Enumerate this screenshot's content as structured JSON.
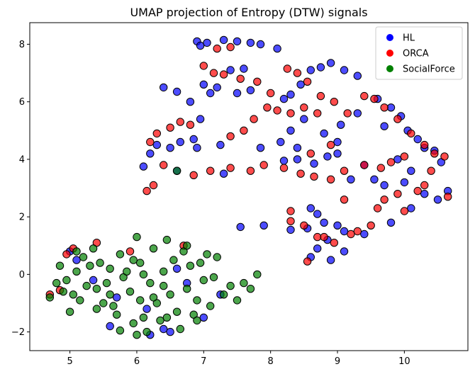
{
  "chart_data": {
    "type": "scatter",
    "title": "UMAP projection of Entropy (DTW) signals",
    "xlabel": "",
    "ylabel": "",
    "xlim": [
      4.4,
      10.95
    ],
    "ylim": [
      -2.65,
      8.75
    ],
    "xticks": [
      5,
      6,
      7,
      8,
      9,
      10
    ],
    "yticks": [
      -2,
      0,
      2,
      4,
      6,
      8
    ],
    "grid": false,
    "legend_position": "top-right",
    "series": [
      {
        "name": "HL",
        "color": "#0000ff",
        "points": [
          [
            6.9,
            8.1
          ],
          [
            6.95,
            7.95
          ],
          [
            7.05,
            8.05
          ],
          [
            7.3,
            8.15
          ],
          [
            7.5,
            8.1
          ],
          [
            7.7,
            8.05
          ],
          [
            7.85,
            8.0
          ],
          [
            8.1,
            7.85
          ],
          [
            7.6,
            7.15
          ],
          [
            7.4,
            7.1
          ],
          [
            6.4,
            6.5
          ],
          [
            6.6,
            6.35
          ],
          [
            7.2,
            6.5
          ],
          [
            7.5,
            6.3
          ],
          [
            7.7,
            6.4
          ],
          [
            7.0,
            6.6
          ],
          [
            8.2,
            6.1
          ],
          [
            8.3,
            6.25
          ],
          [
            8.45,
            6.6
          ],
          [
            8.6,
            7.1
          ],
          [
            8.75,
            7.2
          ],
          [
            8.9,
            7.35
          ],
          [
            9.1,
            7.1
          ],
          [
            9.3,
            6.9
          ],
          [
            9.6,
            6.1
          ],
          [
            9.8,
            5.8
          ],
          [
            9.95,
            5.5
          ],
          [
            10.05,
            5.0
          ],
          [
            10.2,
            4.7
          ],
          [
            10.3,
            4.4
          ],
          [
            10.45,
            4.3
          ],
          [
            10.55,
            3.9
          ],
          [
            6.2,
            4.2
          ],
          [
            6.3,
            4.5
          ],
          [
            6.5,
            4.4
          ],
          [
            6.65,
            4.6
          ],
          [
            6.85,
            4.7
          ],
          [
            6.9,
            4.4
          ],
          [
            7.25,
            4.5
          ],
          [
            6.1,
            3.75
          ],
          [
            6.6,
            3.6
          ],
          [
            7.3,
            3.5
          ],
          [
            8.2,
            3.95
          ],
          [
            8.4,
            4.0
          ],
          [
            8.65,
            3.85
          ],
          [
            8.85,
            4.1
          ],
          [
            9.0,
            4.2
          ],
          [
            9.4,
            3.8
          ],
          [
            9.55,
            3.3
          ],
          [
            9.7,
            3.1
          ],
          [
            10.0,
            3.2
          ],
          [
            10.3,
            2.8
          ],
          [
            10.5,
            2.6
          ],
          [
            10.65,
            2.9
          ],
          [
            8.6,
            2.3
          ],
          [
            8.7,
            2.1
          ],
          [
            8.8,
            1.8
          ],
          [
            9.0,
            1.7
          ],
          [
            8.55,
            1.6
          ],
          [
            8.3,
            1.55
          ],
          [
            7.9,
            1.7
          ],
          [
            7.55,
            1.65
          ],
          [
            9.1,
            1.5
          ],
          [
            9.4,
            1.4
          ],
          [
            9.8,
            1.8
          ],
          [
            10.1,
            2.3
          ],
          [
            8.85,
            1.2
          ],
          [
            8.7,
            0.9
          ],
          [
            8.6,
            0.6
          ],
          [
            8.9,
            0.5
          ],
          [
            9.1,
            0.8
          ],
          [
            8.5,
            5.4
          ],
          [
            8.3,
            5.0
          ],
          [
            8.8,
            4.9
          ],
          [
            9.05,
            5.2
          ],
          [
            9.3,
            5.6
          ],
          [
            9.7,
            5.15
          ],
          [
            8.15,
            4.6
          ],
          [
            7.85,
            4.4
          ],
          [
            6.2,
            -2.1
          ],
          [
            6.4,
            -1.9
          ],
          [
            6.5,
            -2.0
          ],
          [
            5.6,
            -1.8
          ],
          [
            5.0,
            0.8
          ],
          [
            5.1,
            0.5
          ],
          [
            5.35,
            -0.2
          ],
          [
            5.7,
            -0.8
          ],
          [
            6.15,
            -1.2
          ],
          [
            6.6,
            0.2
          ],
          [
            6.75,
            -0.3
          ],
          [
            7.0,
            -1.5
          ],
          [
            7.25,
            -0.7
          ],
          [
            8.4,
            4.4
          ],
          [
            9.0,
            4.6
          ],
          [
            9.2,
            3.3
          ],
          [
            9.9,
            4.0
          ],
          [
            10.1,
            3.6
          ],
          [
            7.1,
            6.3
          ],
          [
            6.8,
            6.0
          ],
          [
            6.95,
            5.4
          ]
        ]
      },
      {
        "name": "ORCA",
        "color": "#ff0000",
        "points": [
          [
            7.2,
            7.85
          ],
          [
            7.4,
            7.9
          ],
          [
            7.0,
            7.25
          ],
          [
            7.15,
            7.0
          ],
          [
            7.3,
            6.95
          ],
          [
            7.55,
            6.8
          ],
          [
            7.8,
            6.7
          ],
          [
            8.0,
            6.3
          ],
          [
            8.25,
            7.15
          ],
          [
            8.4,
            7.0
          ],
          [
            8.55,
            6.7
          ],
          [
            8.75,
            6.2
          ],
          [
            8.95,
            6.0
          ],
          [
            9.15,
            5.6
          ],
          [
            9.4,
            6.2
          ],
          [
            9.55,
            6.1
          ],
          [
            9.7,
            5.8
          ],
          [
            9.9,
            5.4
          ],
          [
            10.1,
            4.9
          ],
          [
            10.3,
            4.5
          ],
          [
            10.45,
            4.2
          ],
          [
            10.6,
            4.1
          ],
          [
            10.4,
            3.6
          ],
          [
            10.65,
            2.7
          ],
          [
            6.2,
            4.6
          ],
          [
            6.3,
            4.9
          ],
          [
            6.5,
            5.1
          ],
          [
            6.65,
            5.3
          ],
          [
            6.8,
            5.2
          ],
          [
            6.4,
            3.8
          ],
          [
            6.25,
            3.1
          ],
          [
            6.15,
            2.9
          ],
          [
            7.4,
            4.8
          ],
          [
            7.6,
            5.0
          ],
          [
            7.75,
            5.4
          ],
          [
            7.95,
            5.8
          ],
          [
            8.1,
            5.7
          ],
          [
            8.3,
            5.6
          ],
          [
            8.5,
            5.8
          ],
          [
            8.7,
            5.6
          ],
          [
            7.9,
            3.8
          ],
          [
            8.2,
            3.7
          ],
          [
            8.45,
            3.5
          ],
          [
            8.65,
            3.4
          ],
          [
            8.9,
            3.3
          ],
          [
            9.1,
            3.6
          ],
          [
            9.4,
            3.8
          ],
          [
            9.65,
            3.7
          ],
          [
            9.8,
            3.9
          ],
          [
            10.0,
            4.1
          ],
          [
            10.2,
            2.9
          ],
          [
            9.9,
            2.8
          ],
          [
            9.7,
            2.6
          ],
          [
            9.3,
            1.5
          ],
          [
            9.5,
            1.7
          ],
          [
            9.2,
            1.4
          ],
          [
            8.95,
            1.1
          ],
          [
            8.7,
            1.3
          ],
          [
            8.55,
            0.45
          ],
          [
            8.3,
            1.85
          ],
          [
            8.5,
            1.7
          ],
          [
            8.8,
            1.3
          ],
          [
            6.85,
            3.45
          ],
          [
            7.1,
            3.6
          ],
          [
            7.4,
            3.7
          ],
          [
            7.7,
            3.6
          ],
          [
            5.05,
            0.9
          ],
          [
            4.95,
            0.7
          ],
          [
            5.4,
            1.1
          ],
          [
            5.9,
            0.8
          ],
          [
            6.7,
            1.0
          ],
          [
            4.7,
            -0.7
          ],
          [
            4.85,
            -0.55
          ],
          [
            8.3,
            2.2
          ],
          [
            9.1,
            2.6
          ],
          [
            9.6,
            2.3
          ],
          [
            10.0,
            2.2
          ],
          [
            8.6,
            4.2
          ],
          [
            8.9,
            4.5
          ],
          [
            10.3,
            3.1
          ]
        ]
      },
      {
        "name": "SocialForce",
        "color": "#008000",
        "points": [
          [
            4.7,
            -0.8
          ],
          [
            4.9,
            -0.6
          ],
          [
            4.95,
            -0.2
          ],
          [
            5.0,
            -1.3
          ],
          [
            5.1,
            0.1
          ],
          [
            5.2,
            0.6
          ],
          [
            5.3,
            0.3
          ],
          [
            5.4,
            -0.5
          ],
          [
            5.5,
            -1.0
          ],
          [
            5.6,
            0.2
          ],
          [
            5.7,
            -1.4
          ],
          [
            5.75,
            0.7
          ],
          [
            5.8,
            -0.1
          ],
          [
            5.9,
            -0.6
          ],
          [
            6.0,
            1.3
          ],
          [
            6.05,
            0.4
          ],
          [
            6.1,
            -1.5
          ],
          [
            6.2,
            -0.3
          ],
          [
            6.25,
            0.9
          ],
          [
            6.3,
            -1.0
          ],
          [
            6.4,
            0.1
          ],
          [
            6.45,
            1.2
          ],
          [
            6.5,
            -0.7
          ],
          [
            6.55,
            0.5
          ],
          [
            6.6,
            -1.3
          ],
          [
            6.7,
            0.8
          ],
          [
            6.75,
            -0.5
          ],
          [
            6.8,
            0.3
          ],
          [
            6.9,
            -0.9
          ],
          [
            6.95,
            0.4
          ],
          [
            7.0,
            -0.2
          ],
          [
            7.1,
            -1.1
          ],
          [
            7.2,
            0.6
          ],
          [
            7.3,
            -0.7
          ],
          [
            7.4,
            -0.4
          ],
          [
            7.5,
            -0.9
          ],
          [
            7.6,
            -0.3
          ],
          [
            7.8,
            0.0
          ],
          [
            7.7,
            -0.5
          ],
          [
            5.15,
            -0.9
          ],
          [
            5.35,
            0.9
          ],
          [
            5.55,
            -0.3
          ],
          [
            5.65,
            -1.1
          ],
          [
            5.85,
            0.1
          ],
          [
            5.95,
            -1.7
          ],
          [
            6.15,
            -2.0
          ],
          [
            6.35,
            -1.6
          ],
          [
            6.65,
            -1.9
          ],
          [
            6.85,
            -1.4
          ],
          [
            6.05,
            -0.9
          ],
          [
            5.25,
            -0.4
          ],
          [
            5.45,
            0.4
          ],
          [
            4.85,
            0.3
          ],
          [
            5.05,
            -0.7
          ],
          [
            6.6,
            3.6
          ],
          [
            5.75,
            -1.95
          ],
          [
            6.0,
            -2.1
          ],
          [
            6.45,
            -1.5
          ],
          [
            7.05,
            0.7
          ],
          [
            7.15,
            -0.1
          ],
          [
            5.95,
            0.5
          ],
          [
            6.75,
            1.0
          ],
          [
            6.9,
            -1.6
          ],
          [
            5.6,
            -0.7
          ],
          [
            6.25,
            -0.8
          ],
          [
            5.4,
            -1.2
          ],
          [
            4.8,
            -0.3
          ],
          [
            5.1,
            0.8
          ],
          [
            6.1,
            0.0
          ],
          [
            6.4,
            -0.4
          ]
        ]
      }
    ]
  }
}
